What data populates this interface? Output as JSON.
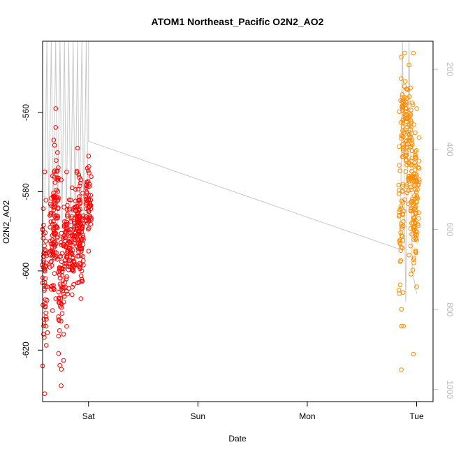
{
  "chart_data": {
    "type": "scatter",
    "title": "ATOM1 Northeast_Pacific O2N2_AO2",
    "xlabel": "Date",
    "ylabel": "O2N2_AO2",
    "x_unit": "days (Sat = 0)",
    "xlim": [
      -0.42,
      3.15
    ],
    "ylim": [
      -633,
      -542
    ],
    "x_ticks": [
      {
        "label": "Sat",
        "value": 0
      },
      {
        "label": "Sun",
        "value": 1
      },
      {
        "label": "Mon",
        "value": 2
      },
      {
        "label": "Tue",
        "value": 3
      }
    ],
    "y_ticks": [
      -620,
      -600,
      -580,
      -560
    ],
    "y2_lim": [
      1030,
      130
    ],
    "y2_ticks": [
      200,
      400,
      600,
      800,
      1000
    ],
    "grid": false,
    "colors": {
      "series_1": "#ff0000",
      "series_2": "#ff8c00",
      "pressure_line": "#c8c8c8",
      "axis": "#000000",
      "right_axis": "#bdbdbd"
    },
    "series": [
      {
        "marker": "open-circle",
        "color": "#ff0000",
        "x_range": [
          -0.4,
          0.0
        ],
        "clusters": [
          {
            "x": -0.4,
            "y_min": -631,
            "y_max": -575
          },
          {
            "x": -0.33,
            "y_min": -610,
            "y_max": -576
          },
          {
            "x": -0.3,
            "y_min": -607,
            "y_max": -559
          },
          {
            "x": -0.25,
            "y_min": -629,
            "y_max": -577
          },
          {
            "x": -0.2,
            "y_min": -614,
            "y_max": -575
          },
          {
            "x": -0.15,
            "y_min": -606,
            "y_max": -579
          },
          {
            "x": -0.1,
            "y_min": -603,
            "y_max": -569
          },
          {
            "x": -0.07,
            "y_min": -607,
            "y_max": -577
          },
          {
            "x": 0.0,
            "y_min": -595,
            "y_max": -571
          }
        ]
      },
      {
        "marker": "open-circle",
        "color": "#ff8c00",
        "x_range": [
          2.85,
          3.0
        ],
        "clusters": [
          {
            "x": 2.86,
            "y_min": -625,
            "y_max": -546
          },
          {
            "x": 2.89,
            "y_min": -582,
            "y_max": -545
          },
          {
            "x": 2.93,
            "y_min": -596,
            "y_max": -548
          },
          {
            "x": 2.97,
            "y_min": -621,
            "y_max": -545
          },
          {
            "x": 3.0,
            "y_min": -604,
            "y_max": -559
          }
        ]
      }
    ],
    "pressure_line": {
      "color": "#c8c8c8",
      "points": [
        {
          "x": 0.0,
          "p": 380
        },
        {
          "x": 2.85,
          "p": 650
        },
        {
          "x": 2.87,
          "p": 130
        },
        {
          "x": 2.9,
          "p": 780
        },
        {
          "x": 2.93,
          "p": 130
        },
        {
          "x": 2.96,
          "p": 700
        },
        {
          "x": 3.0,
          "p": 760
        }
      ],
      "early_spikes": [
        -0.4,
        -0.36,
        -0.32,
        -0.28,
        -0.24,
        -0.2,
        -0.16,
        -0.12,
        -0.08,
        -0.04
      ]
    }
  }
}
